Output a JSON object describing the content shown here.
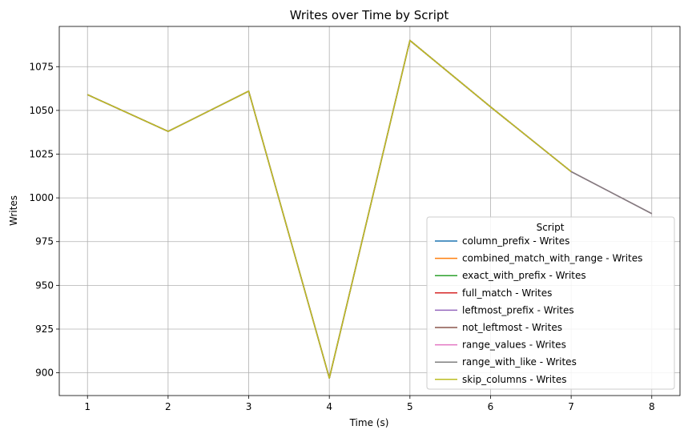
{
  "chart_data": {
    "type": "line",
    "title": "Writes over Time by Script",
    "xlabel": "Time (s)",
    "ylabel": "Writes",
    "x": [
      1,
      2,
      3,
      4,
      5,
      6,
      7,
      8
    ],
    "xticks": [
      "1",
      "2",
      "3",
      "4",
      "5",
      "6",
      "7",
      "8"
    ],
    "yticks": [
      "900",
      "925",
      "950",
      "975",
      "1000",
      "1025",
      "1050",
      "1075"
    ],
    "xlim": [
      0.65,
      8.35
    ],
    "ylim": [
      887,
      1098
    ],
    "grid": true,
    "legend": {
      "title": "Script",
      "placement": "lower right"
    },
    "series": [
      {
        "name": "column_prefix - Writes",
        "color": "#1f77b4",
        "values": [
          1059,
          1038,
          1061,
          897,
          1090,
          1052,
          1015,
          null
        ]
      },
      {
        "name": "combined_match_with_range - Writes",
        "color": "#ff7f0e",
        "values": [
          1059,
          1038,
          1061,
          897,
          1090,
          1052,
          1015,
          null
        ]
      },
      {
        "name": "exact_with_prefix - Writes",
        "color": "#2ca02c",
        "values": [
          1059,
          1038,
          1061,
          897,
          1090,
          1052,
          1015,
          null
        ]
      },
      {
        "name": "full_match - Writes",
        "color": "#d62728",
        "values": [
          1059,
          1038,
          1061,
          897,
          1090,
          1052,
          1015,
          null
        ]
      },
      {
        "name": "leftmost_prefix - Writes",
        "color": "#9467bd",
        "values": [
          1059,
          1038,
          1061,
          897,
          1090,
          1052,
          1015,
          null
        ]
      },
      {
        "name": "not_leftmost - Writes",
        "color": "#8c564b",
        "values": [
          1059,
          1038,
          1061,
          897,
          1090,
          1052,
          1015,
          991
        ]
      },
      {
        "name": "range_values - Writes",
        "color": "#e377c2",
        "values": [
          1059,
          1038,
          1061,
          897,
          1090,
          1052,
          1015,
          991
        ]
      },
      {
        "name": "range_with_like - Writes",
        "color": "#7f7f7f",
        "values": [
          1059,
          1038,
          1061,
          897,
          1090,
          1052,
          1015,
          991
        ]
      },
      {
        "name": "skip_columns - Writes",
        "color": "#bcbd22",
        "values": [
          1059,
          1038,
          1061,
          897,
          1090,
          1052,
          1015,
          null
        ]
      }
    ]
  }
}
